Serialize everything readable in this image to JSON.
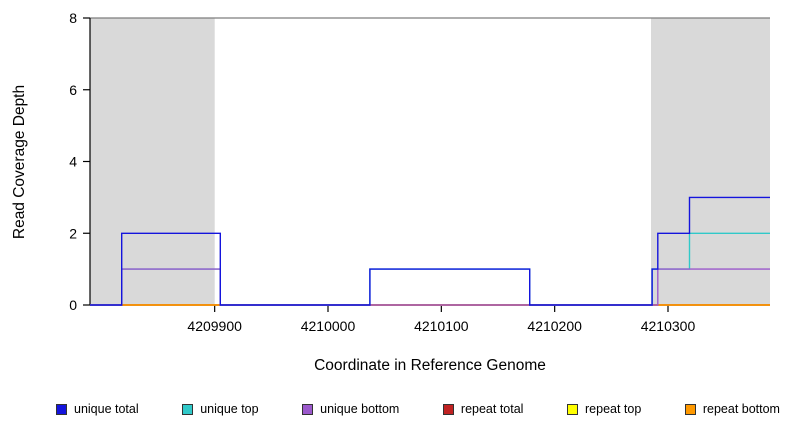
{
  "chart_data": {
    "type": "line",
    "xlabel": "Coordinate in Reference Genome",
    "ylabel": "Read Coverage Depth",
    "x_range": [
      4209790,
      4210390
    ],
    "y_range": [
      0,
      8
    ],
    "x_ticks": [
      4209900,
      4210000,
      4210100,
      4210200,
      4210300
    ],
    "y_ticks": [
      0,
      2,
      4,
      6,
      8
    ],
    "top_border_depth": 8,
    "shade_color": "#d9d9d9",
    "shaded_regions": [
      [
        4209790,
        4209900
      ],
      [
        4210285,
        4210390
      ]
    ],
    "step_style": "step-after",
    "series": [
      {
        "name": "repeat top",
        "color": "#ffff00",
        "points": [
          [
            4209790,
            0
          ]
        ]
      },
      {
        "name": "repeat total",
        "color": "#c02222",
        "points": [
          [
            4209790,
            0
          ]
        ]
      },
      {
        "name": "repeat bottom",
        "color": "#ff9900",
        "points": [
          [
            4209790,
            0
          ]
        ]
      },
      {
        "name": "unique top",
        "color": "#30c9c9",
        "points": [
          [
            4209790,
            0
          ],
          [
            4209818,
            1
          ],
          [
            4209905,
            0
          ],
          [
            4210037,
            1
          ],
          [
            4210178,
            0
          ],
          [
            4210286,
            1
          ],
          [
            4210319,
            2
          ]
        ]
      },
      {
        "name": "unique bottom",
        "color": "#9b59cc",
        "points": [
          [
            4209790,
            0
          ],
          [
            4209818,
            1
          ],
          [
            4209905,
            0
          ],
          [
            4210291,
            1
          ]
        ]
      },
      {
        "name": "unique total",
        "color": "#1414dd",
        "points": [
          [
            4209790,
            0
          ],
          [
            4209818,
            2
          ],
          [
            4209905,
            0
          ],
          [
            4210037,
            1
          ],
          [
            4210178,
            0
          ],
          [
            4210286,
            1
          ],
          [
            4210291,
            2
          ],
          [
            4210319,
            3
          ]
        ]
      }
    ],
    "legend": {
      "items": [
        {
          "label": "unique total",
          "color": "#1414dd"
        },
        {
          "label": "unique top",
          "color": "#30c9c9"
        },
        {
          "label": "unique bottom",
          "color": "#9b59cc"
        },
        {
          "label": "repeat total",
          "color": "#c02222"
        },
        {
          "label": "repeat top",
          "color": "#ffff00"
        },
        {
          "label": "repeat bottom",
          "color": "#ff9900"
        }
      ]
    }
  }
}
